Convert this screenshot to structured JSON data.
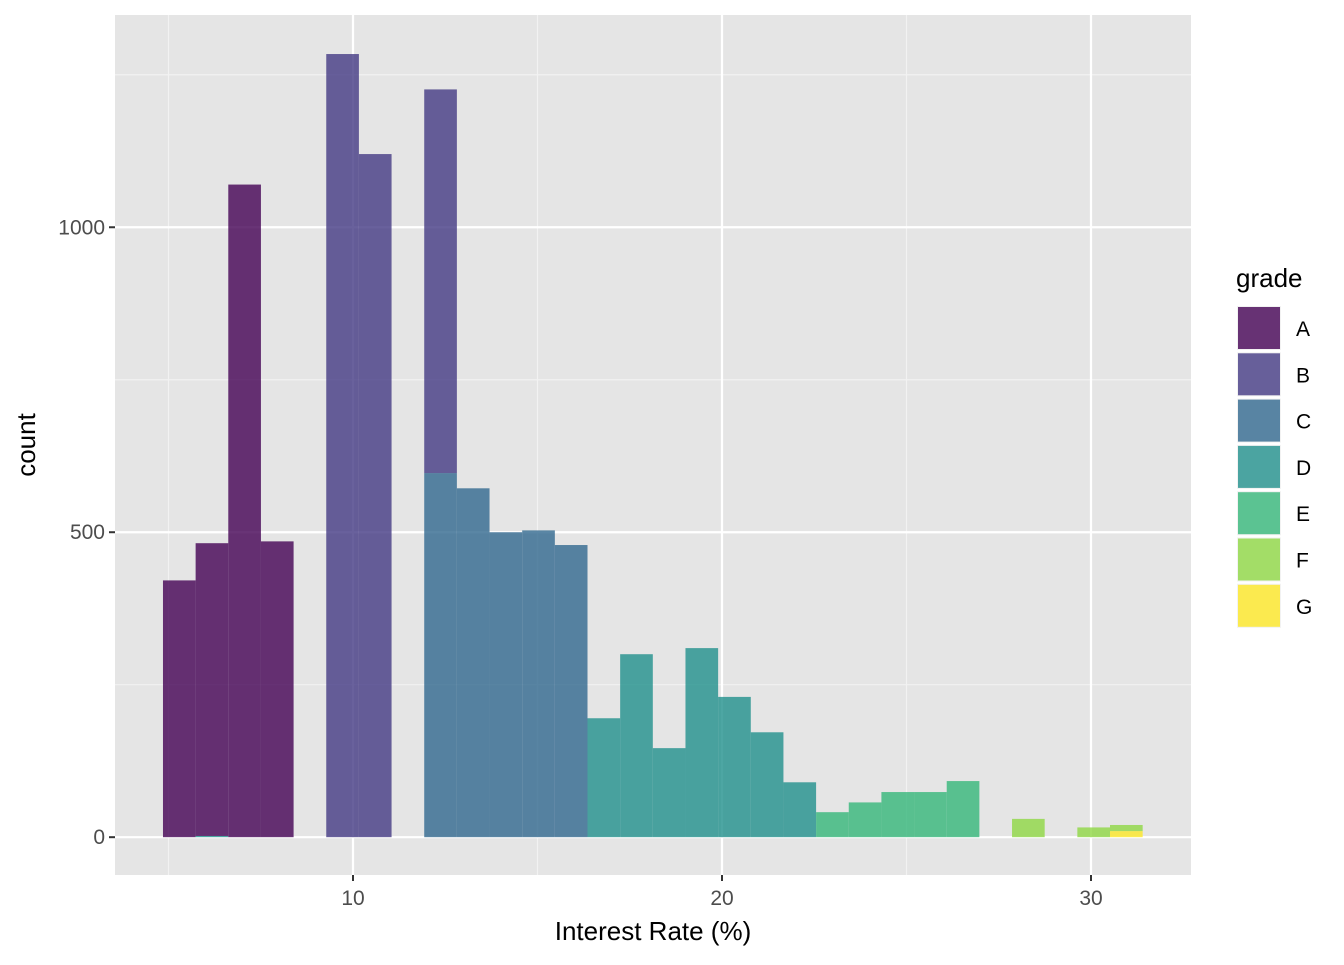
{
  "chart_data": {
    "type": "bar",
    "subtype": "stacked histogram",
    "title": "",
    "xlabel": "Interest Rate (%)",
    "ylabel": "count",
    "xlim": [
      3.55,
      32.71
    ],
    "ylim": [
      -62,
      1348
    ],
    "x_ticks": [
      10,
      20,
      30
    ],
    "x_tick_labels": [
      "10",
      "20",
      "30"
    ],
    "y_ticks": [
      0,
      500,
      1000
    ],
    "y_tick_labels": [
      "0",
      "500",
      "1000"
    ],
    "grid": true,
    "bin_start": 4.85,
    "bin_width": 0.885,
    "legend": {
      "title": "grade",
      "position": "right",
      "entries": [
        "A",
        "B",
        "C",
        "D",
        "E",
        "F",
        "G"
      ],
      "colors": [
        "#440154",
        "#443A83",
        "#31688E",
        "#21908C",
        "#35B779",
        "#8FD744",
        "#FDE725"
      ]
    },
    "fill_alpha": 0.8,
    "series": [
      {
        "name": "A",
        "values": [
          421,
          480,
          1070,
          485,
          0,
          0,
          0,
          0,
          0,
          0,
          0,
          0,
          0,
          0,
          0,
          0,
          0,
          0,
          0,
          0,
          0,
          0,
          0,
          0,
          0,
          0,
          0,
          0,
          0,
          0
        ]
      },
      {
        "name": "B",
        "values": [
          0,
          0,
          0,
          0,
          0,
          1284,
          1120,
          0,
          629,
          0,
          0,
          0,
          0,
          0,
          0,
          0,
          0,
          0,
          0,
          0,
          0,
          0,
          0,
          0,
          0,
          0,
          0,
          0,
          0,
          0
        ]
      },
      {
        "name": "C",
        "values": [
          0,
          0,
          0,
          0,
          0,
          0,
          0,
          0,
          597,
          572,
          500,
          503,
          479,
          0,
          0,
          0,
          0,
          0,
          0,
          0,
          0,
          0,
          0,
          0,
          0,
          0,
          0,
          0,
          0,
          0
        ]
      },
      {
        "name": "D",
        "values": [
          0,
          2,
          0,
          0,
          0,
          0,
          0,
          0,
          0,
          0,
          0,
          0,
          0,
          195,
          300,
          146,
          310,
          230,
          172,
          90,
          0,
          0,
          0,
          0,
          0,
          0,
          0,
          0,
          0,
          0
        ]
      },
      {
        "name": "E",
        "values": [
          0,
          0,
          0,
          0,
          0,
          0,
          0,
          0,
          0,
          0,
          0,
          0,
          0,
          0,
          0,
          0,
          0,
          0,
          0,
          0,
          41,
          57,
          74,
          74,
          92,
          0,
          0,
          0,
          0,
          0
        ]
      },
      {
        "name": "F",
        "values": [
          0,
          0,
          0,
          0,
          0,
          0,
          0,
          0,
          0,
          0,
          0,
          0,
          0,
          0,
          0,
          0,
          0,
          0,
          0,
          0,
          0,
          0,
          0,
          0,
          0,
          0,
          30,
          0,
          16,
          10
        ]
      },
      {
        "name": "G",
        "values": [
          0,
          0,
          0,
          0,
          0,
          0,
          0,
          0,
          0,
          0,
          0,
          0,
          0,
          0,
          0,
          0,
          0,
          0,
          0,
          0,
          0,
          0,
          0,
          0,
          0,
          0,
          0,
          0,
          0,
          10
        ]
      }
    ]
  }
}
